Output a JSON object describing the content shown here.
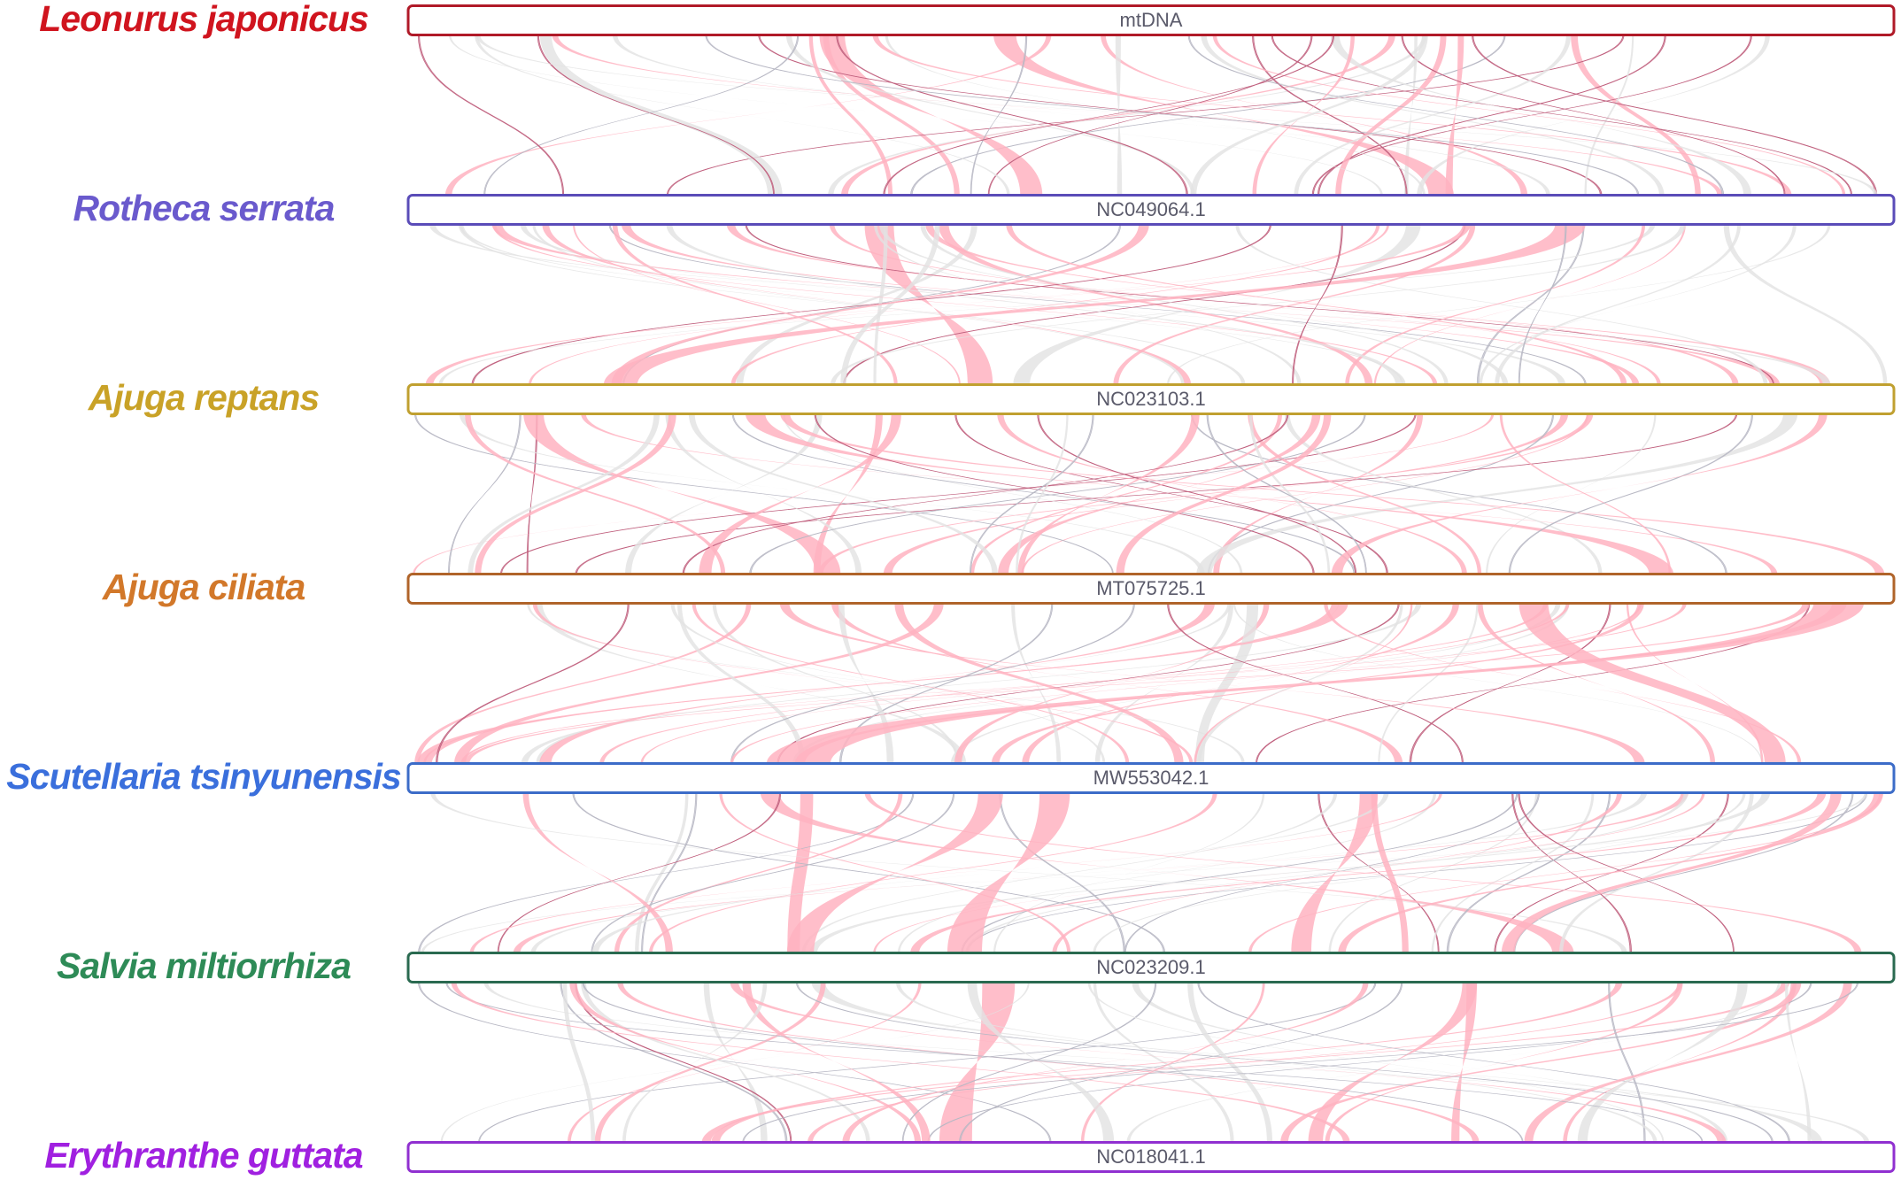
{
  "tracks": [
    {
      "species": "Leonurus japonicus",
      "accession": "mtDNA",
      "color": "#d0141e",
      "border": "#b01a28"
    },
    {
      "species": "Rotheca serrata",
      "accession": "NC049064.1",
      "color": "#6a5acd",
      "border": "#5a4cb8"
    },
    {
      "species": "Ajuga reptans",
      "accession": "NC023103.1",
      "color": "#c9a227",
      "border": "#c0a030"
    },
    {
      "species": "Ajuga ciliata",
      "accession": "MT075725.1",
      "color": "#d2782a",
      "border": "#b0642a"
    },
    {
      "species": "Scutellaria tsinyunensis",
      "accession": "MW553042.1",
      "color": "#3a6fdc",
      "border": "#3c6cc8"
    },
    {
      "species": "Salvia miltiorrhiza",
      "accession": "NC023209.1",
      "color": "#2e8b57",
      "border": "#2a6a50"
    },
    {
      "species": "Erythranthe guttata",
      "accession": "NC018041.1",
      "color": "#a020e0",
      "border": "#9030d0"
    }
  ]
}
